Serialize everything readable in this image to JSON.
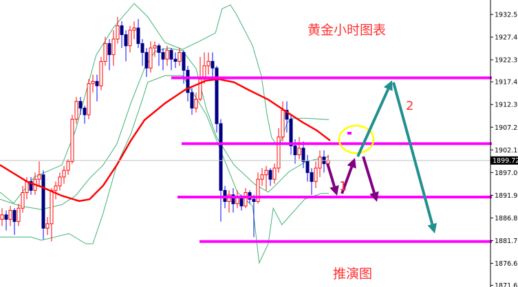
{
  "chart_data": {
    "type": "candlestick",
    "title": "黄金小时图表",
    "subtitle": "推演图",
    "ylim": [
      1871.65,
      1935.0
    ],
    "y_ticks": [
      "1932.55",
      "1927.45",
      "1922.35",
      "1917.40",
      "1912.30",
      "1907.20",
      "1902.10",
      "1897.00",
      "1891.90",
      "1886.80",
      "1881.70",
      "1876.60",
      "1871.65"
    ],
    "current_price": "1899.72",
    "colors": {
      "bull": "#ff0000",
      "bear_wick": "#0000ff",
      "bear_body": "#000080",
      "ma": "#ff0000",
      "bands": "#3cb371",
      "levels": "#ff00ff",
      "arrow_purple": "#800080",
      "arrow_teal": "#20908f",
      "circle": "#ffff00"
    },
    "ohlc": [
      [
        1886.5,
        1889,
        1885,
        1887.5
      ],
      [
        1887.5,
        1888.5,
        1884,
        1886.5
      ],
      [
        1886.5,
        1889.5,
        1885,
        1888.5
      ],
      [
        1888.5,
        1889,
        1883,
        1886
      ],
      [
        1886,
        1890,
        1885,
        1889
      ],
      [
        1889,
        1894,
        1888,
        1892.5
      ],
      [
        1892.5,
        1896,
        1891,
        1895
      ],
      [
        1895,
        1896,
        1892,
        1893
      ],
      [
        1893,
        1897,
        1892,
        1895.5
      ],
      [
        1895.5,
        1899.5,
        1894,
        1896.5
      ],
      [
        1896.5,
        1897.5,
        1882,
        1884.5
      ],
      [
        1884.5,
        1887,
        1883,
        1885.5
      ],
      [
        1885.5,
        1893.5,
        1881.5,
        1893
      ],
      [
        1893,
        1895,
        1891,
        1894
      ],
      [
        1894,
        1897,
        1893,
        1896
      ],
      [
        1896,
        1898.5,
        1894.5,
        1897.5
      ],
      [
        1897.5,
        1900,
        1896.5,
        1899.5
      ],
      [
        1899.5,
        1910,
        1899,
        1909
      ],
      [
        1909,
        1914,
        1908,
        1913
      ],
      [
        1913,
        1914,
        1910,
        1911.5
      ],
      [
        1911.5,
        1912,
        1908,
        1910
      ],
      [
        1910,
        1918,
        1909,
        1917
      ],
      [
        1917,
        1919,
        1915,
        1917.5
      ],
      [
        1917.5,
        1919,
        1913,
        1916.5
      ],
      [
        1916.5,
        1923,
        1915.5,
        1922
      ],
      [
        1922,
        1927.5,
        1921,
        1926
      ],
      [
        1926,
        1927,
        1920,
        1923.5
      ],
      [
        1923.5,
        1929,
        1921,
        1927
      ],
      [
        1927,
        1932,
        1926,
        1930
      ],
      [
        1930,
        1931,
        1925,
        1928
      ],
      [
        1928,
        1929,
        1922,
        1925.5
      ],
      [
        1925.5,
        1930,
        1924,
        1929
      ],
      [
        1929,
        1931,
        1927,
        1929.5
      ],
      [
        1929.5,
        1931.5,
        1925,
        1926
      ],
      [
        1926,
        1927,
        1921,
        1924
      ],
      [
        1924,
        1925,
        1918.5,
        1920.5
      ],
      [
        1920.5,
        1926.5,
        1919.5,
        1925
      ],
      [
        1925,
        1926.5,
        1923,
        1925.5
      ],
      [
        1925.5,
        1926,
        1921,
        1924
      ],
      [
        1924,
        1925,
        1920,
        1922.5
      ],
      [
        1922.5,
        1925.5,
        1921,
        1924.5
      ],
      [
        1924.5,
        1925,
        1920,
        1922.5
      ],
      [
        1922.5,
        1924,
        1920.5,
        1922
      ],
      [
        1922,
        1925,
        1921,
        1924
      ],
      [
        1924,
        1924.5,
        1917,
        1920
      ],
      [
        1920,
        1921,
        1913,
        1915
      ],
      [
        1915,
        1916,
        1910,
        1911.5
      ],
      [
        1911.5,
        1915,
        1910.5,
        1913.5
      ],
      [
        1913.5,
        1923,
        1913,
        1918
      ],
      [
        1918,
        1924,
        1917,
        1921
      ],
      [
        1921,
        1924,
        1919,
        1922
      ],
      [
        1922,
        1924,
        1918,
        1920.5
      ],
      [
        1920.5,
        1921,
        1906,
        1908
      ],
      [
        1908,
        1909,
        1886,
        1893
      ],
      [
        1893,
        1894,
        1889,
        1890.5
      ],
      [
        1890.5,
        1893,
        1888,
        1892
      ],
      [
        1892,
        1893.5,
        1888,
        1890
      ],
      [
        1890,
        1893,
        1889,
        1891.5
      ],
      [
        1891.5,
        1892,
        1888.5,
        1889.5
      ],
      [
        1889.5,
        1893.5,
        1889,
        1892.5
      ],
      [
        1892.5,
        1893,
        1890,
        1891
      ],
      [
        1891,
        1892,
        1882.5,
        1890.5
      ],
      [
        1890.5,
        1897,
        1890,
        1895.5
      ],
      [
        1895.5,
        1898,
        1894,
        1896.5
      ],
      [
        1896.5,
        1898.5,
        1893,
        1897.5
      ],
      [
        1897.5,
        1898,
        1894,
        1895.5
      ],
      [
        1895.5,
        1899,
        1894.5,
        1898
      ],
      [
        1898,
        1907,
        1897,
        1905
      ],
      [
        1905,
        1913,
        1904,
        1911
      ],
      [
        1911,
        1913,
        1906,
        1909
      ],
      [
        1909,
        1910,
        1901,
        1903
      ],
      [
        1903,
        1904.5,
        1899,
        1901
      ],
      [
        1901,
        1905,
        1900,
        1902.5
      ],
      [
        1902.5,
        1904,
        1898,
        1899.5
      ],
      [
        1899.5,
        1901,
        1895,
        1897
      ],
      [
        1897,
        1898,
        1892,
        1895
      ],
      [
        1895,
        1899.5,
        1893.5,
        1898
      ],
      [
        1898,
        1902,
        1896,
        1900.5
      ],
      [
        1900.5,
        1902,
        1897,
        1899
      ],
      [
        1899,
        1901,
        1898,
        1899.72
      ]
    ],
    "moving_average": [
      [
        -0.5,
        1898.7
      ],
      [
        6.2,
        1894.9
      ],
      [
        9.5,
        1893.8
      ],
      [
        14.5,
        1891.8
      ],
      [
        18.7,
        1890.6
      ],
      [
        21.2,
        1891.0
      ],
      [
        24.5,
        1894.1
      ],
      [
        27.8,
        1898.7
      ],
      [
        31.2,
        1904.2
      ],
      [
        34.5,
        1908.8
      ],
      [
        39.5,
        1912.6
      ],
      [
        44.5,
        1915.7
      ],
      [
        49.5,
        1917.7
      ],
      [
        52.5,
        1918.0
      ],
      [
        56.2,
        1917.3
      ],
      [
        59.5,
        1915.7
      ],
      [
        64.5,
        1913.4
      ],
      [
        69.5,
        1910.3
      ],
      [
        72.8,
        1908.3
      ],
      [
        76.2,
        1906.5
      ],
      [
        79.5,
        1904.2
      ]
    ],
    "bollinger_upper": [
      [
        -0.5,
        1892.6
      ],
      [
        2.8,
        1890.1
      ],
      [
        7.8,
        1896.0
      ],
      [
        14.5,
        1898.7
      ],
      [
        17.8,
        1906.5
      ],
      [
        22.8,
        1923.4
      ],
      [
        27,
        1929.6
      ],
      [
        32,
        1935.0
      ],
      [
        35.3,
        1932.0
      ],
      [
        39.5,
        1926.2
      ],
      [
        43.7,
        1924.7
      ],
      [
        47.8,
        1926.5
      ],
      [
        51.7,
        1928.4
      ],
      [
        53.3,
        1933.8
      ],
      [
        55.3,
        1934.7
      ],
      [
        56.7,
        1932.7
      ],
      [
        60.7,
        1925.5
      ],
      [
        62.8,
        1918.8
      ],
      [
        64.2,
        1910.0
      ],
      [
        65.3,
        1904.9
      ],
      [
        67,
        1902.6
      ],
      [
        69,
        1908.0
      ],
      [
        70,
        1909.2
      ],
      [
        73.7,
        1909.2
      ],
      [
        79.2,
        1908.9
      ]
    ],
    "bollinger_middle": [
      [
        -0.5,
        1891.0
      ],
      [
        4.5,
        1889.5
      ],
      [
        9.5,
        1888.7
      ],
      [
        14.5,
        1889.8
      ],
      [
        17.8,
        1891.8
      ],
      [
        21.2,
        1895.7
      ],
      [
        24.5,
        1898.7
      ],
      [
        27.8,
        1903.4
      ],
      [
        31.2,
        1912.6
      ],
      [
        34.5,
        1920.4
      ],
      [
        37,
        1924.2
      ],
      [
        40.3,
        1925.0
      ],
      [
        43.7,
        1924.4
      ],
      [
        47,
        1920.4
      ],
      [
        49.5,
        1911.3
      ],
      [
        52,
        1904.9
      ],
      [
        56.2,
        1898.7
      ],
      [
        61.2,
        1894.4
      ],
      [
        64.5,
        1892.6
      ],
      [
        66.2,
        1894.1
      ],
      [
        69.5,
        1897.2
      ],
      [
        73.7,
        1899.5
      ],
      [
        79.2,
        1900.6
      ]
    ],
    "bollinger_lower": [
      [
        -0.5,
        1882.5
      ],
      [
        2.8,
        1882.5
      ],
      [
        7,
        1882.5
      ],
      [
        9.5,
        1881.8
      ],
      [
        12.8,
        1882.5
      ],
      [
        16.2,
        1883.3
      ],
      [
        20.3,
        1881.0
      ],
      [
        22,
        1881.0
      ],
      [
        24.5,
        1887.9
      ],
      [
        27.8,
        1898.7
      ],
      [
        31.2,
        1905.7
      ],
      [
        33.7,
        1912.6
      ],
      [
        35.3,
        1917.3
      ],
      [
        39.5,
        1918.8
      ],
      [
        43.7,
        1918.8
      ],
      [
        46.2,
        1915.0
      ],
      [
        49.5,
        1910.0
      ],
      [
        52.8,
        1902.3
      ],
      [
        57,
        1892.6
      ],
      [
        60.7,
        1889.5
      ],
      [
        62.3,
        1876.7
      ],
      [
        64.5,
        1881.0
      ],
      [
        65.7,
        1889.0
      ],
      [
        67.8,
        1885.3
      ],
      [
        73.3,
        1891.0
      ],
      [
        77.3,
        1892.3
      ],
      [
        79.2,
        1892.3
      ]
    ],
    "levels": [
      1918.3,
      1903.5,
      1891.5,
      1881.5
    ],
    "annotations": {
      "step1": "1",
      "step2": "2"
    }
  }
}
